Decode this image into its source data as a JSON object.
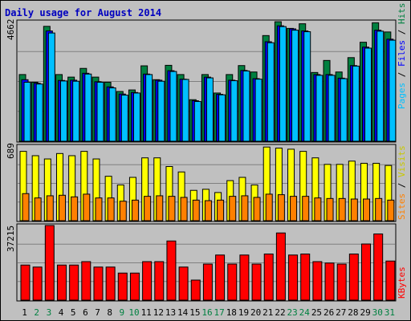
{
  "chart_data": [
    {
      "type": "bar",
      "title": "Daily usage for August 2014",
      "categories": [
        "1",
        "2",
        "3",
        "4",
        "5",
        "6",
        "7",
        "8",
        "9",
        "10",
        "11",
        "12",
        "13",
        "14",
        "15",
        "16",
        "17",
        "18",
        "19",
        "20",
        "21",
        "22",
        "23",
        "24",
        "25",
        "26",
        "27",
        "28",
        "29",
        "30",
        "31"
      ],
      "weekend_days": [
        "2",
        "3",
        "9",
        "10",
        "16",
        "17",
        "23",
        "24",
        "30",
        "31"
      ],
      "y_max_label": "4662",
      "ylim": [
        0,
        4662
      ],
      "series": [
        {
          "name": "Hits",
          "color": "#008040",
          "values": [
            2600,
            2300,
            4480,
            2600,
            2500,
            2840,
            2500,
            2300,
            1940,
            2000,
            2940,
            2400,
            2960,
            2600,
            1620,
            2600,
            1880,
            2600,
            2950,
            2700,
            4120,
            4660,
            4400,
            4580,
            2680,
            3150,
            2700,
            3260,
            3860,
            4620,
            4260
          ]
        },
        {
          "name": "Files",
          "color": "#0000ff",
          "values": [
            2400,
            2260,
            4300,
            2370,
            2380,
            2650,
            2320,
            2120,
            1840,
            1900,
            2620,
            2380,
            2750,
            2420,
            1580,
            2500,
            1830,
            2380,
            2760,
            2440,
            3880,
            4500,
            4380,
            4300,
            2600,
            2600,
            2460,
            2950,
            3670,
            4330,
            3980
          ]
        },
        {
          "name": "Pages",
          "color": "#00c0ff",
          "values": [
            2300,
            2230,
            4220,
            2350,
            2340,
            2620,
            2300,
            2080,
            1800,
            1880,
            2600,
            2340,
            2720,
            2410,
            1550,
            2470,
            1810,
            2360,
            2740,
            2420,
            3840,
            4470,
            4330,
            4270,
            2570,
            2570,
            2440,
            2930,
            3630,
            4290,
            3940
          ]
        }
      ]
    },
    {
      "type": "bar",
      "y_max_label": "689",
      "ylim": [
        0,
        689
      ],
      "series": [
        {
          "name": "Visits",
          "color": "#ffff00",
          "values": [
            640,
            600,
            570,
            620,
            600,
            640,
            570,
            410,
            330,
            400,
            580,
            580,
            500,
            450,
            280,
            290,
            260,
            370,
            400,
            330,
            680,
            670,
            660,
            640,
            580,
            520,
            520,
            550,
            530,
            530,
            510
          ]
        },
        {
          "name": "Sites",
          "color": "#ff8000",
          "values": [
            250,
            210,
            230,
            235,
            220,
            245,
            210,
            210,
            180,
            190,
            225,
            230,
            225,
            215,
            190,
            185,
            190,
            225,
            230,
            215,
            245,
            240,
            225,
            225,
            210,
            205,
            205,
            200,
            200,
            205,
            190
          ]
        }
      ]
    },
    {
      "type": "bar",
      "y_max_label": "37215",
      "ylim": [
        0,
        37215
      ],
      "series": [
        {
          "name": "KBytes",
          "color": "#ff0000",
          "values": [
            17500,
            16500,
            37215,
            17500,
            17500,
            19200,
            16500,
            16500,
            13500,
            13500,
            19200,
            19200,
            29500,
            16500,
            10000,
            18000,
            22500,
            18000,
            22500,
            18000,
            23000,
            33500,
            22500,
            23000,
            19200,
            18500,
            18000,
            23000,
            28000,
            33000,
            19500
          ]
        }
      ]
    }
  ]
}
